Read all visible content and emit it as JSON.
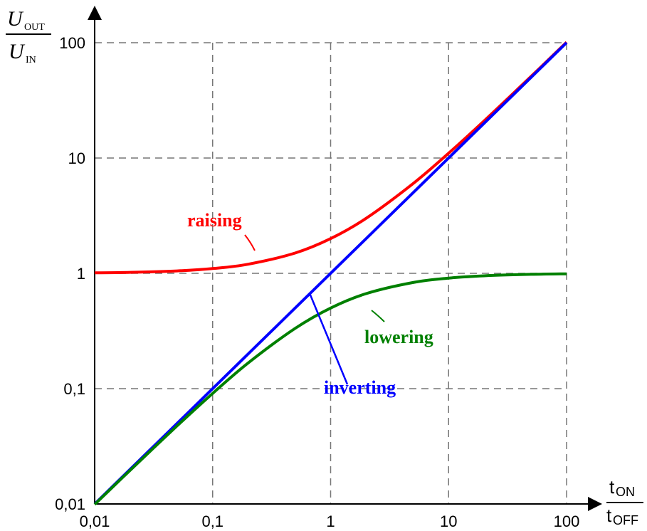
{
  "chart_data": {
    "type": "line",
    "x_scale": "log",
    "y_scale": "log",
    "xlim": [
      0.01,
      100
    ],
    "ylim": [
      0.01,
      100
    ],
    "grid": true,
    "x_ticks": [
      "0,01",
      "0,1",
      "1",
      "10",
      "100"
    ],
    "y_ticks": [
      "0,01",
      "0,1",
      "1",
      "10",
      "100"
    ],
    "ylabel": {
      "num_main": "U",
      "num_sub": "OUT",
      "den_main": "U",
      "den_sub": "IN"
    },
    "xlabel": {
      "num_main": "t",
      "num_sub": "ON",
      "den_main": "t",
      "den_sub": "OFF"
    },
    "series": [
      {
        "name": "raising",
        "color": "#ff0000",
        "x": [
          0.01,
          0.02,
          0.05,
          0.1,
          0.2,
          0.5,
          1,
          2,
          5,
          10,
          20,
          50,
          100
        ],
        "y": [
          1.01,
          1.02,
          1.05,
          1.1,
          1.2,
          1.5,
          2.0,
          3.0,
          6.0,
          11.0,
          21.0,
          51.0,
          101.0
        ]
      },
      {
        "name": "inverting",
        "color": "#0000ff",
        "x": [
          0.01,
          0.1,
          1,
          10,
          100
        ],
        "y": [
          0.01,
          0.1,
          1,
          10,
          100
        ]
      },
      {
        "name": "lowering",
        "color": "#008000",
        "x": [
          0.01,
          0.02,
          0.05,
          0.1,
          0.2,
          0.5,
          1,
          2,
          5,
          10,
          20,
          50,
          100
        ],
        "y": [
          0.0099,
          0.0196,
          0.0476,
          0.0909,
          0.167,
          0.333,
          0.5,
          0.667,
          0.833,
          0.909,
          0.952,
          0.98,
          0.99
        ]
      }
    ],
    "annotations": [
      {
        "text": "raising",
        "series": "raising",
        "color": "#ff0000"
      },
      {
        "text": "inverting",
        "series": "inverting",
        "color": "#0000ff"
      },
      {
        "text": "lowering",
        "series": "lowering",
        "color": "#008000"
      }
    ]
  }
}
